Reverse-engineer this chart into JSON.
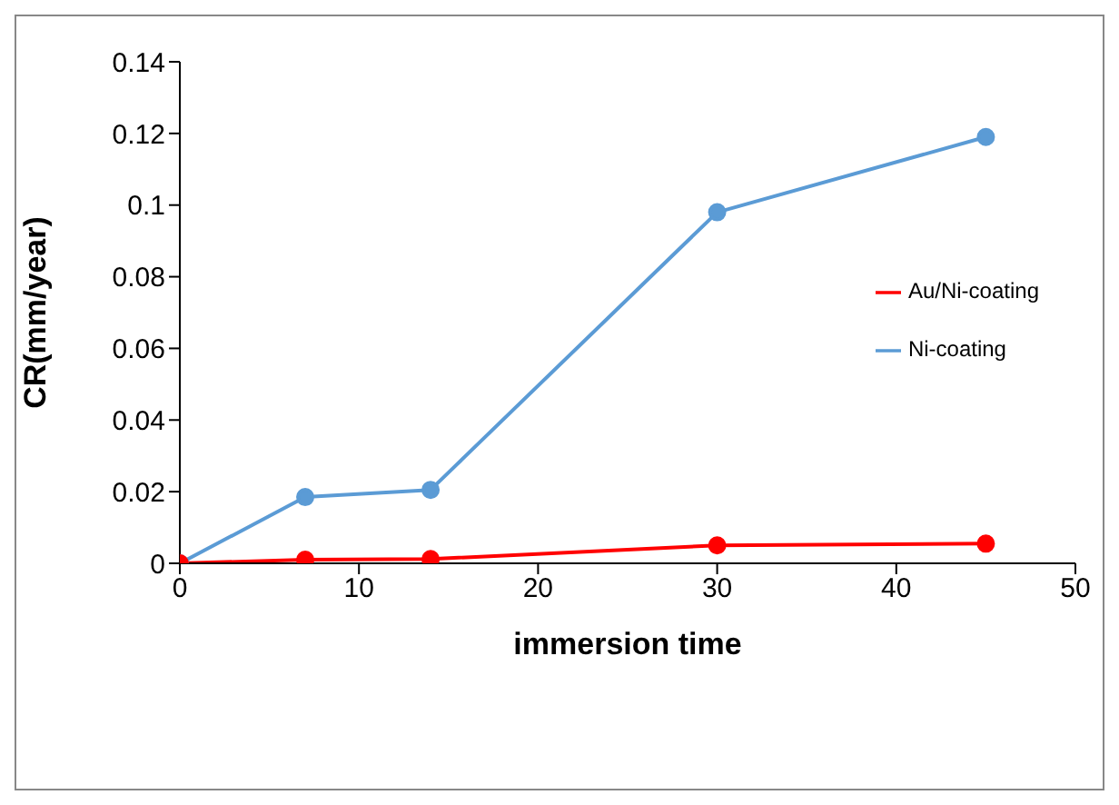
{
  "chart_data": {
    "type": "line",
    "xlabel": "immersion time",
    "ylabel": "CR(mm/year)",
    "xlim": [
      0,
      50
    ],
    "xticks": [
      0,
      10,
      20,
      30,
      40,
      50
    ],
    "ylim": [
      0,
      0.14
    ],
    "yticks": [
      0,
      0.02,
      0.04,
      0.06,
      0.08,
      0.1,
      0.12,
      0.14
    ],
    "x": [
      0,
      7,
      14,
      30,
      45
    ],
    "grid": false,
    "legend": "right",
    "marker": "circle",
    "series": [
      {
        "name": "Ni-coating",
        "color": "#5b9bd5",
        "values": [
          0,
          0.0185,
          0.0205,
          0.098,
          0.119
        ]
      },
      {
        "name": "Au/Ni-coating",
        "color": "#ff0000",
        "values": [
          0,
          0.001,
          0.0012,
          0.005,
          0.0055
        ]
      }
    ]
  }
}
